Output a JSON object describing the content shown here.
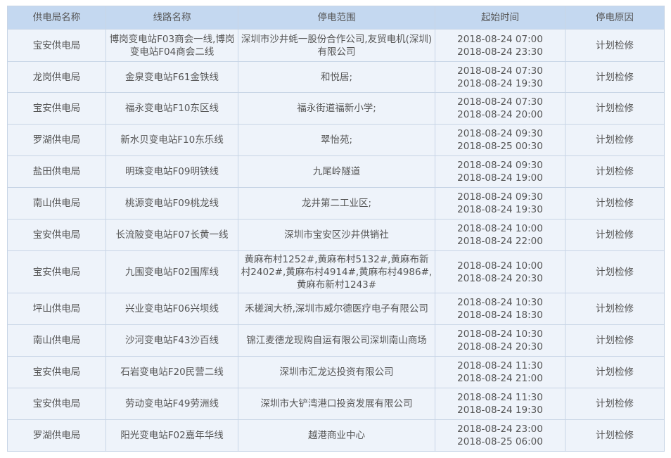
{
  "table": {
    "headers": [
      "供电局名称",
      "线路名称",
      "停电范围",
      "起始时间",
      "停电原因"
    ],
    "rows": [
      {
        "bureau": "宝安供电局",
        "line": "博岗变电站F03商会一线,博岗变电站F04商会二线",
        "area": "深圳市沙井蚝一股份合作公司,友贸电机(深圳)有限公司",
        "start": "2018-08-24 07:00",
        "end": "2018-08-24 23:30",
        "reason": "计划检修"
      },
      {
        "bureau": "龙岗供电局",
        "line": "金泉变电站F61金铁线",
        "area": "和悦居;",
        "start": "2018-08-24 07:30",
        "end": "2018-08-24 19:30",
        "reason": "计划检修"
      },
      {
        "bureau": "宝安供电局",
        "line": "福永变电站F10东区线",
        "area": "福永街道福新小学;",
        "start": "2018-08-24 07:30",
        "end": "2018-08-24 20:00",
        "reason": "计划检修"
      },
      {
        "bureau": "罗湖供电局",
        "line": "新水贝变电站F10东乐线",
        "area": "翠怡苑;",
        "start": "2018-08-24 09:30",
        "end": "2018-08-25 00:30",
        "reason": "计划检修"
      },
      {
        "bureau": "盐田供电局",
        "line": "明珠变电站F09明铁线",
        "area": "九尾岭隧道",
        "start": "2018-08-24 09:30",
        "end": "2018-08-24 19:00",
        "reason": "计划检修"
      },
      {
        "bureau": "南山供电局",
        "line": "桃源变电站F09桃龙线",
        "area": "龙井第二工业区;",
        "start": "2018-08-24 09:30",
        "end": "2018-08-24 19:30",
        "reason": "计划检修"
      },
      {
        "bureau": "宝安供电局",
        "line": "长流陂变电站F07长黄一线",
        "area": "深圳市宝安区沙井供销社",
        "start": "2018-08-24 10:00",
        "end": "2018-08-24 22:00",
        "reason": "计划检修"
      },
      {
        "bureau": "宝安供电局",
        "line": "九围变电站F02围库线",
        "area": "黄麻布村1252#,黄麻布村5132#,黄麻布新村2402#,黄麻布村4914#,黄麻布村4986#,黄麻布新村1243#",
        "start": "2018-08-24 10:00",
        "end": "2018-08-24 20:30",
        "reason": "计划检修"
      },
      {
        "bureau": "坪山供电局",
        "line": "兴业变电站F06兴坝线",
        "area": "禾槎涧大桥,深圳市威尔德医疗电子有限公司",
        "start": "2018-08-24 10:30",
        "end": "2018-08-24 18:30",
        "reason": "计划检修"
      },
      {
        "bureau": "南山供电局",
        "line": "沙河变电站F43沙百线",
        "area": "锦江麦德龙现购自运有限公司深圳南山商场",
        "start": "2018-08-24 10:30",
        "end": "2018-08-24 20:30",
        "reason": "计划检修"
      },
      {
        "bureau": "宝安供电局",
        "line": "石岩变电站F20民营二线",
        "area": "深圳市汇龙达投资有限公司",
        "start": "2018-08-24 11:30",
        "end": "2018-08-24 21:00",
        "reason": "计划检修"
      },
      {
        "bureau": "宝安供电局",
        "line": "劳动变电站F49劳洲线",
        "area": "深圳市大铲湾港口投资发展有限公司",
        "start": "2018-08-24 11:30",
        "end": "2018-08-24 19:30",
        "reason": "计划检修"
      },
      {
        "bureau": "罗湖供电局",
        "line": "阳光变电站F02嘉年华线",
        "area": "越港商业中心",
        "start": "2018-08-24 23:00",
        "end": "2018-08-25 06:00",
        "reason": "计划检修"
      }
    ]
  },
  "colors": {
    "header_bg": "#c4d8f0",
    "row_bg": "#eef3fa",
    "border": "#c8d5e6",
    "text": "#555555"
  }
}
